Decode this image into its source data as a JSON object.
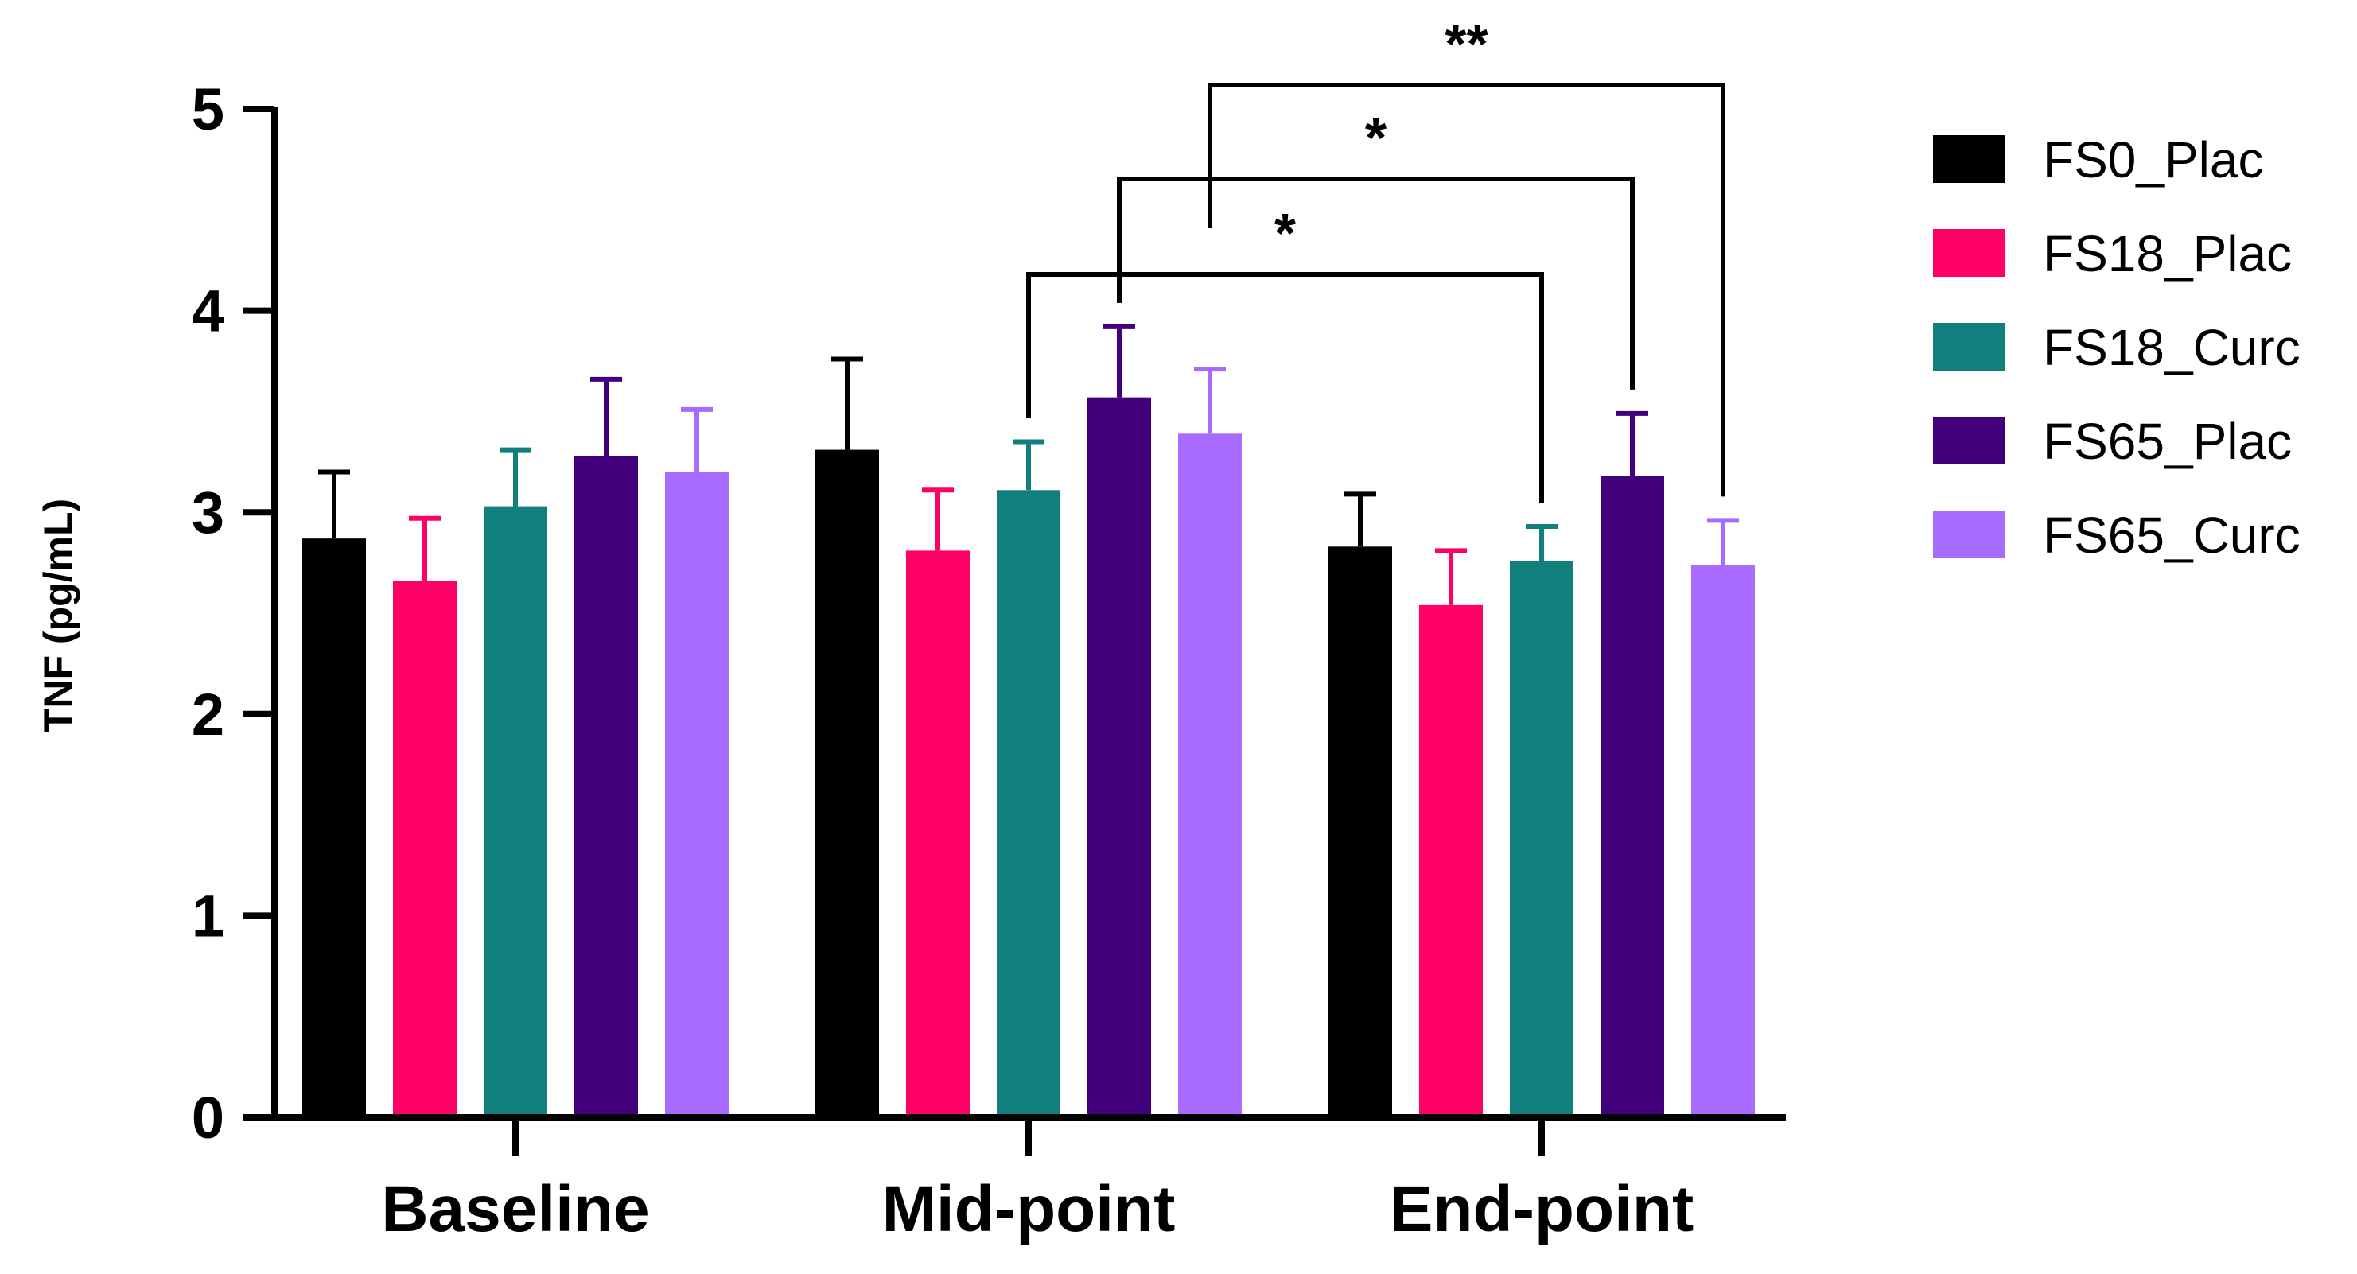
{
  "chart_data": {
    "type": "bar",
    "title": "",
    "xlabel": "",
    "ylabel": "TNF (pg/mL)",
    "ylim": [
      0,
      5
    ],
    "yticks": [
      "0",
      "1",
      "2",
      "3",
      "4",
      "5"
    ],
    "categories": [
      "Baseline",
      "Mid-point",
      "End-point"
    ],
    "series": [
      {
        "name": "FS0_Plac",
        "color": "#000000",
        "values": [
          2.87,
          3.31,
          2.83
        ],
        "errors": [
          0.33,
          0.45,
          0.26
        ]
      },
      {
        "name": "FS18_Plac",
        "color": "#FF0066",
        "values": [
          2.66,
          2.81,
          2.54
        ],
        "errors": [
          0.31,
          0.3,
          0.27
        ]
      },
      {
        "name": "FS18_Curc",
        "color": "#11807D",
        "values": [
          3.03,
          3.11,
          2.76
        ],
        "errors": [
          0.28,
          0.24,
          0.17
        ]
      },
      {
        "name": "FS65_Plac",
        "color": "#42007C",
        "values": [
          3.28,
          3.57,
          3.18
        ],
        "errors": [
          0.38,
          0.35,
          0.31
        ]
      },
      {
        "name": "FS65_Curc",
        "color": "#A86BFF",
        "values": [
          3.2,
          3.39,
          2.74
        ],
        "errors": [
          0.31,
          0.32,
          0.22
        ]
      }
    ],
    "legend_position": "right",
    "significance": [
      {
        "label": "*",
        "from": {
          "category": "Mid-point",
          "series": "FS18_Curc"
        },
        "to": {
          "category": "End-point",
          "series": "FS18_Curc"
        }
      },
      {
        "label": "*",
        "from": {
          "category": "Mid-point",
          "series": "FS65_Plac"
        },
        "to": {
          "category": "End-point",
          "series": "FS65_Plac"
        }
      },
      {
        "label": "**",
        "from": {
          "category": "Mid-point",
          "series": "FS65_Curc"
        },
        "to": {
          "category": "End-point",
          "series": "FS65_Curc"
        }
      }
    ]
  }
}
